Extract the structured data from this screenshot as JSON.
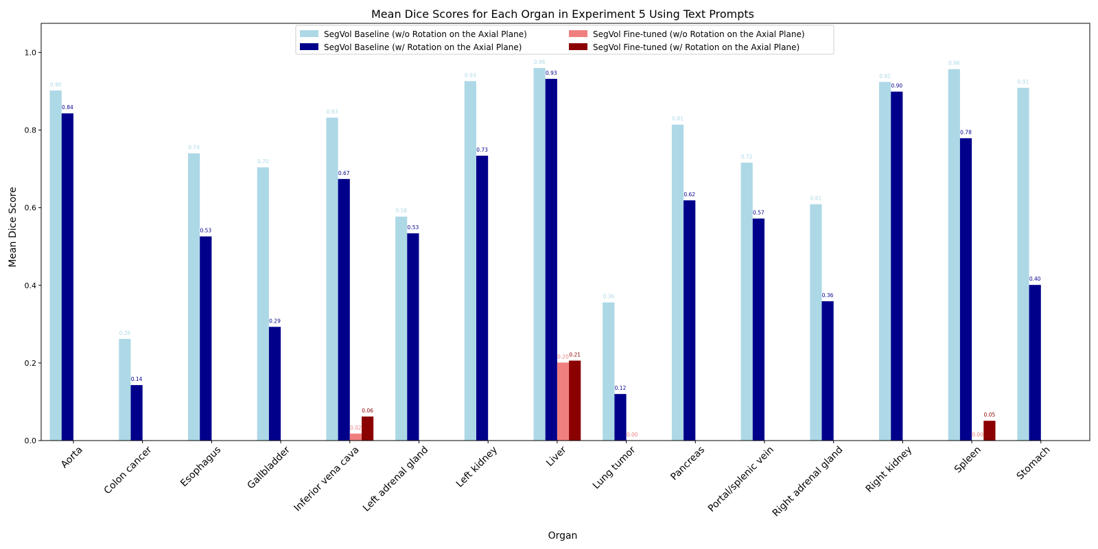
{
  "chart_data": {
    "type": "bar",
    "title": "Mean Dice Scores for Each Organ in Experiment 5 Using Text Prompts",
    "xlabel": "Organ",
    "ylabel": "Mean Dice Score",
    "ylim": [
      0,
      1.075
    ],
    "yticks": [
      "0.0",
      "0.2",
      "0.4",
      "0.6",
      "0.8",
      "1.0"
    ],
    "grid": false,
    "legend_position": "top-center",
    "categories": [
      "Aorta",
      "Colon cancer",
      "Esophagus",
      "Gallbladder",
      "Inferior vena cava",
      "Left adrenal gland",
      "Left kidney",
      "Liver",
      "Lung tumor",
      "Pancreas",
      "Portal/splenic vein",
      "Right adrenal gland",
      "Right kidney",
      "Spleen",
      "Stomach"
    ],
    "series": [
      {
        "name": "SegVol Baseline (w/o Rotation on the Axial Plane)",
        "color": "#add8e6",
        "values": [
          0.902,
          0.262,
          0.74,
          0.704,
          0.832,
          0.577,
          0.926,
          0.96,
          0.356,
          0.814,
          0.716,
          0.609,
          0.924,
          0.957,
          0.909
        ],
        "labels": [
          "0.90",
          "0.26",
          "0.74",
          "0.70",
          "0.83",
          "0.58",
          "0.93",
          "0.96",
          "0.36",
          "0.81",
          "0.72",
          "0.61",
          "0.92",
          "0.96",
          "0.91"
        ]
      },
      {
        "name": "SegVol Baseline (w/ Rotation on the Axial Plane)",
        "color": "#00008b",
        "values": [
          0.843,
          0.143,
          0.526,
          0.293,
          0.674,
          0.534,
          0.734,
          0.932,
          0.12,
          0.619,
          0.572,
          0.359,
          0.899,
          0.779,
          0.401
        ],
        "labels": [
          "0.84",
          "0.14",
          "0.53",
          "0.29",
          "0.67",
          "0.53",
          "0.73",
          "0.93",
          "0.12",
          "0.62",
          "0.57",
          "0.36",
          "0.90",
          "0.78",
          "0.40"
        ]
      },
      {
        "name": "SegVol Fine-tuned (w/o Rotation on the Axial Plane)",
        "color": "#f08080",
        "values": [
          null,
          null,
          null,
          null,
          0.018,
          null,
          null,
          0.201,
          0.0,
          null,
          null,
          null,
          null,
          0.0,
          null
        ],
        "labels": [
          null,
          null,
          null,
          null,
          "0.02",
          null,
          null,
          "0.20",
          "0.00",
          null,
          null,
          null,
          null,
          "0.00",
          null
        ]
      },
      {
        "name": "SegVol Fine-tuned (w/ Rotation on the Axial Plane)",
        "color": "#8b0000",
        "values": [
          null,
          null,
          null,
          null,
          0.062,
          null,
          null,
          0.206,
          null,
          null,
          null,
          null,
          null,
          0.051,
          null
        ],
        "labels": [
          null,
          null,
          null,
          null,
          "0.06",
          null,
          null,
          "0.21",
          null,
          null,
          null,
          null,
          null,
          "0.05",
          null
        ]
      }
    ]
  }
}
